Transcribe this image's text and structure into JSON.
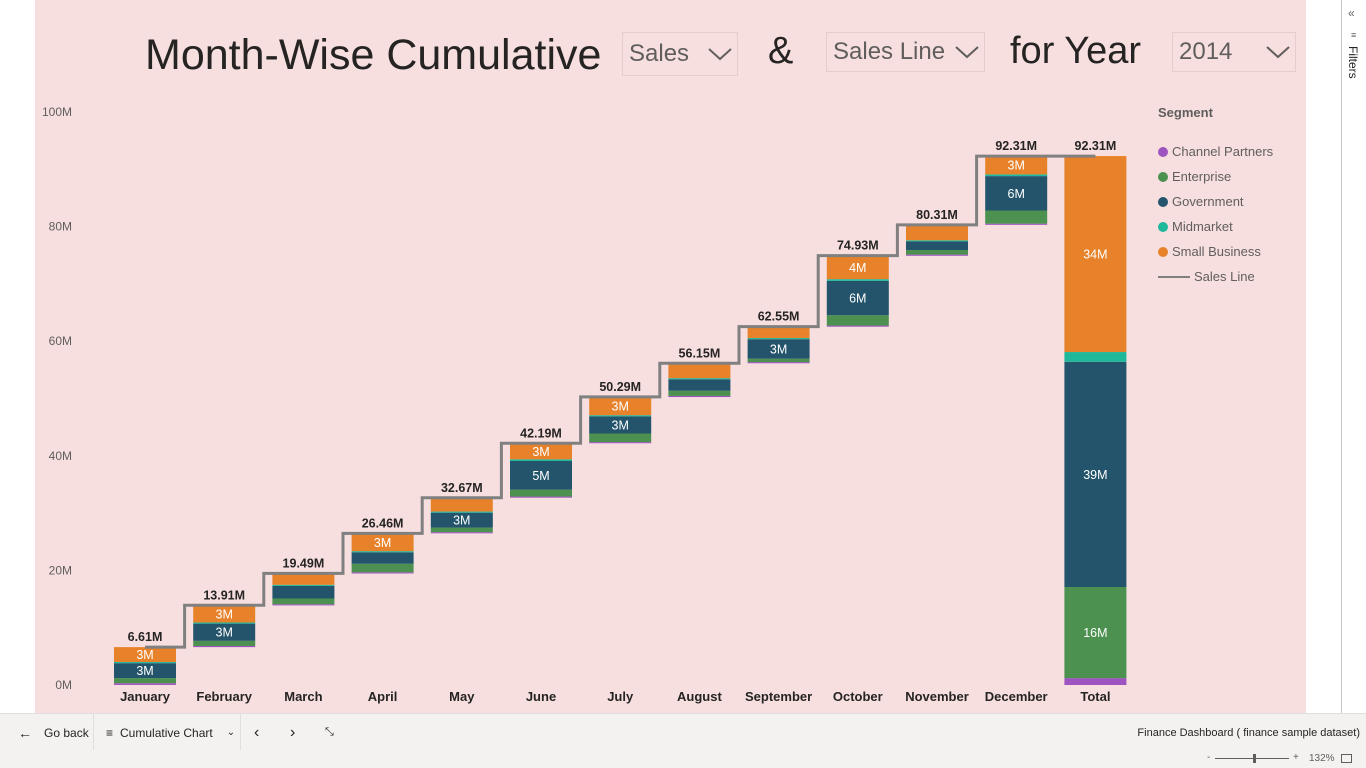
{
  "title": {
    "prefix": "Month-Wise Cumulative",
    "amp": "&",
    "suffix": "for Year"
  },
  "slicers": {
    "measure": "Sales",
    "line": "Sales Line",
    "year": "2014"
  },
  "legend": {
    "title": "Segment",
    "items": [
      {
        "label": "Channel Partners",
        "color": "#9d54c0",
        "kind": "dot"
      },
      {
        "label": "Enterprise",
        "color": "#4c9150",
        "kind": "dot"
      },
      {
        "label": "Government",
        "color": "#23546b",
        "kind": "dot"
      },
      {
        "label": "Midmarket",
        "color": "#1fb89b",
        "kind": "dot"
      },
      {
        "label": "Small Business",
        "color": "#e7822a",
        "kind": "dot"
      },
      {
        "label": "Sales Line",
        "color": "#808080",
        "kind": "line"
      }
    ]
  },
  "chart_data": {
    "type": "bar",
    "subtype": "stacked-waterfall",
    "categories": [
      "January",
      "February",
      "March",
      "April",
      "May",
      "June",
      "July",
      "August",
      "September",
      "October",
      "November",
      "December",
      "Total"
    ],
    "series_order": [
      "Channel Partners",
      "Enterprise",
      "Government",
      "Midmarket",
      "Small Business"
    ],
    "segments": [
      {
        "Channel Partners": 0.3,
        "Enterprise": 0.9,
        "Government": 2.6,
        "Midmarket": 0.2,
        "Small Business": 2.6
      },
      {
        "Channel Partners": 0.2,
        "Enterprise": 0.9,
        "Government": 3.0,
        "Midmarket": 0.2,
        "Small Business": 3.0
      },
      {
        "Channel Partners": 0.2,
        "Enterprise": 1.0,
        "Government": 2.2,
        "Midmarket": 0.2,
        "Small Business": 2.0
      },
      {
        "Channel Partners": 0.2,
        "Enterprise": 1.5,
        "Government": 2.0,
        "Midmarket": 0.2,
        "Small Business": 3.1
      },
      {
        "Channel Partners": 0.2,
        "Enterprise": 0.8,
        "Government": 2.6,
        "Midmarket": 0.2,
        "Small Business": 2.4
      },
      {
        "Channel Partners": 0.2,
        "Enterprise": 1.2,
        "Government": 5.0,
        "Midmarket": 0.3,
        "Small Business": 2.8
      },
      {
        "Channel Partners": 0.2,
        "Enterprise": 1.5,
        "Government": 3.0,
        "Midmarket": 0.2,
        "Small Business": 3.2
      },
      {
        "Channel Partners": 0.2,
        "Enterprise": 0.9,
        "Government": 2.0,
        "Midmarket": 0.2,
        "Small Business": 2.6
      },
      {
        "Channel Partners": 0.2,
        "Enterprise": 0.6,
        "Government": 3.4,
        "Midmarket": 0.2,
        "Small Business": 2.0
      },
      {
        "Channel Partners": 0.2,
        "Enterprise": 1.8,
        "Government": 6.0,
        "Midmarket": 0.3,
        "Small Business": 4.1
      },
      {
        "Channel Partners": 0.2,
        "Enterprise": 0.8,
        "Government": 1.5,
        "Midmarket": 0.2,
        "Small Business": 2.7
      },
      {
        "Channel Partners": 0.2,
        "Enterprise": 2.3,
        "Government": 6.0,
        "Midmarket": 0.3,
        "Small Business": 3.2
      },
      {
        "Channel Partners": 1.2,
        "Enterprise": 15.9,
        "Government": 39.3,
        "Midmarket": 1.7,
        "Small Business": 34.2
      }
    ],
    "segment_labels": [
      {
        "Government": "3M",
        "Small Business": "3M"
      },
      {
        "Government": "3M",
        "Small Business": "3M"
      },
      {},
      {
        "Small Business": "3M"
      },
      {
        "Government": "3M"
      },
      {
        "Government": "5M",
        "Small Business": "3M"
      },
      {
        "Government": "3M",
        "Small Business": "3M"
      },
      {},
      {
        "Government": "3M"
      },
      {
        "Government": "6M",
        "Small Business": "4M"
      },
      {},
      {
        "Government": "6M",
        "Small Business": "3M"
      },
      {
        "Enterprise": "16M",
        "Government": "39M",
        "Small Business": "34M"
      }
    ],
    "cumulative": [
      6.61,
      13.91,
      19.49,
      26.46,
      32.67,
      42.19,
      50.29,
      56.15,
      62.55,
      74.93,
      80.31,
      92.31,
      92.31
    ],
    "cumulative_labels": [
      "6.61M",
      "13.91M",
      "19.49M",
      "26.46M",
      "32.67M",
      "42.19M",
      "50.29M",
      "56.15M",
      "62.55M",
      "74.93M",
      "80.31M",
      "92.31M",
      "92.31M"
    ],
    "yticks": [
      0,
      20,
      40,
      60,
      80,
      100
    ],
    "ytick_labels": [
      "0M",
      "20M",
      "40M",
      "60M",
      "80M",
      "100M"
    ],
    "ylim": [
      0,
      100
    ],
    "xlabel": "",
    "ylabel": "",
    "grid": false,
    "legend_position": "right"
  },
  "footer": {
    "go_back": "Go back",
    "page_name": "Cumulative Chart",
    "report_name": "Finance Dashboard ( finance sample dataset)",
    "zoom": "132%"
  },
  "filters_label": "Filters"
}
